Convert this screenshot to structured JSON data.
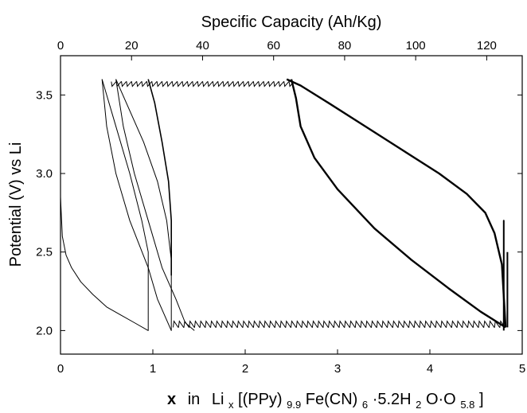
{
  "chart_data": {
    "type": "line",
    "top_axis": {
      "label": "Specific Capacity (Ah/Kg)",
      "range": [
        0,
        130
      ],
      "ticks": [
        "0",
        "20",
        "40",
        "60",
        "80",
        "100",
        "120"
      ],
      "tick_values": [
        0,
        20,
        40,
        60,
        80,
        100,
        120
      ]
    },
    "x_axis": {
      "label_parts": {
        "x": "x",
        "in": "in",
        "li": "Li",
        "sub_x": "x",
        "bracket": "[(PPy)",
        "sub_99": "9.9",
        "fe": "Fe(CN)",
        "sub_6": "6",
        "water": "·5.2H",
        "sub_2": "2",
        "oo": "O·O",
        "sub_58": "5.8",
        "close": "]"
      },
      "range": [
        0,
        5
      ],
      "ticks": [
        "0",
        "1",
        "2",
        "3",
        "4",
        "5"
      ],
      "tick_values": [
        0,
        1,
        2,
        3,
        4,
        5
      ]
    },
    "y_axis": {
      "label": "Potential (V) vs Li",
      "range": [
        1.85,
        3.75
      ],
      "ticks": [
        "2.0",
        "2.5",
        "3.0",
        "3.5"
      ],
      "tick_values": [
        2.0,
        2.5,
        3.0,
        3.5
      ]
    },
    "grid": false,
    "series": [
      {
        "x": [
          0,
          0.02,
          0.06,
          0.12,
          0.22,
          0.35,
          0.5,
          0.65,
          0.8,
          0.95,
          0.95,
          0.95,
          0.88,
          0.75,
          0.6,
          0.45
        ],
        "y": [
          2.85,
          2.6,
          2.48,
          2.4,
          2.31,
          2.23,
          2.15,
          2.1,
          2.05,
          2.0,
          2.25,
          2.5,
          2.7,
          3.0,
          3.3,
          3.6
        ],
        "lw": 1
      },
      {
        "x": [
          0.45,
          0.5,
          0.6,
          0.75,
          0.95,
          1.05,
          1.2,
          1.2,
          1.2,
          1.15,
          1.05,
          0.9,
          0.75,
          0.6
        ],
        "y": [
          3.6,
          3.3,
          3.0,
          2.7,
          2.4,
          2.2,
          2.0,
          2.2,
          2.45,
          2.7,
          2.95,
          3.2,
          3.4,
          3.6
        ],
        "lw": 1
      },
      {
        "x": [
          0.6,
          0.68,
          0.8,
          0.95,
          1.1,
          1.25,
          1.35,
          1.45
        ],
        "y": [
          3.6,
          3.3,
          3.0,
          2.7,
          2.4,
          2.2,
          2.05,
          2.0
        ],
        "lw": 1
      },
      {
        "x": [
          1.2,
          1.2,
          1.17,
          1.1,
          1.02,
          0.95
        ],
        "y": [
          2.35,
          2.7,
          2.95,
          3.2,
          3.45,
          3.6
        ],
        "lw": 1.6
      },
      {
        "x": [
          2.45,
          2.6,
          2.9,
          3.3,
          3.7,
          4.1,
          4.4,
          4.6,
          4.7,
          4.78,
          4.82
        ],
        "y": [
          3.6,
          3.56,
          3.45,
          3.3,
          3.15,
          3.0,
          2.87,
          2.75,
          2.62,
          2.42,
          2.02
        ],
        "lw": 2.4
      },
      {
        "x": [
          4.82,
          4.55,
          4.2,
          3.8,
          3.4,
          3.0,
          2.75,
          2.6,
          2.55,
          2.5
        ],
        "y": [
          2.02,
          2.12,
          2.27,
          2.45,
          2.65,
          2.9,
          3.1,
          3.3,
          3.48,
          3.6
        ],
        "lw": 2.4
      },
      {
        "x": [
          4.8,
          4.8,
          4.8,
          4.8
        ],
        "y": [
          2.0,
          2.4,
          2.7,
          2.45
        ],
        "lw": 2
      },
      {
        "x": [
          4.84,
          4.84
        ],
        "y": [
          2.02,
          2.5
        ],
        "lw": 2
      }
    ],
    "sawtooth": [
      {
        "x0": 0.55,
        "x1": 2.5,
        "y": 3.585,
        "amp": 0.03,
        "step": 0.055,
        "dir": "down"
      },
      {
        "x0": 1.22,
        "x1": 4.78,
        "y": 2.02,
        "amp": 0.04,
        "step": 0.058,
        "dir": "up"
      }
    ]
  }
}
